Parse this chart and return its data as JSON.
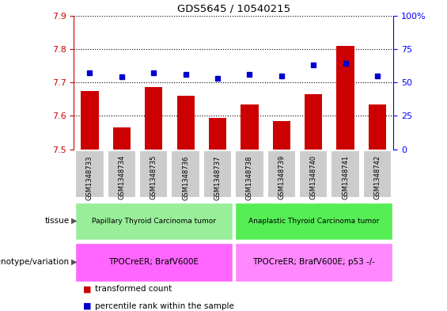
{
  "title": "GDS5645 / 10540215",
  "samples": [
    "GSM1348733",
    "GSM1348734",
    "GSM1348735",
    "GSM1348736",
    "GSM1348737",
    "GSM1348738",
    "GSM1348739",
    "GSM1348740",
    "GSM1348741",
    "GSM1348742"
  ],
  "bar_values": [
    7.675,
    7.565,
    7.685,
    7.66,
    7.595,
    7.635,
    7.585,
    7.665,
    7.81,
    7.635
  ],
  "dot_values": [
    57,
    54,
    57,
    56,
    53,
    56,
    55,
    63,
    64,
    55
  ],
  "ymin": 7.5,
  "ymax": 7.9,
  "y2min": 0,
  "y2max": 100,
  "yticks": [
    7.5,
    7.6,
    7.7,
    7.8,
    7.9
  ],
  "y2ticks": [
    0,
    25,
    50,
    75,
    100
  ],
  "y2ticklabels": [
    "0",
    "25",
    "50",
    "75",
    "100%"
  ],
  "bar_color": "#CC0000",
  "dot_color": "#0000CC",
  "bar_width": 0.55,
  "tissue_groups": [
    {
      "label": "Papillary Thyroid Carcinoma tumor",
      "start": 0,
      "end": 5,
      "color": "#99EE99"
    },
    {
      "label": "Anaplastic Thyroid Carcinoma tumor",
      "start": 5,
      "end": 10,
      "color": "#55EE55"
    }
  ],
  "genotype_groups": [
    {
      "label": "TPOCreER; BrafV600E",
      "start": 0,
      "end": 5,
      "color": "#FF66FF"
    },
    {
      "label": "TPOCreER; BrafV600E; p53 -/-",
      "start": 5,
      "end": 10,
      "color": "#FF88FF"
    }
  ],
  "tissue_label": "tissue",
  "genotype_label": "genotype/variation",
  "legend_items": [
    {
      "color": "#CC0000",
      "label": "transformed count"
    },
    {
      "color": "#0000CC",
      "label": "percentile rank within the sample"
    }
  ],
  "ylabel_color": "#CC0000",
  "y2label_color": "#0000FF",
  "grid_color": "black",
  "sample_box_color": "#CCCCCC",
  "sample_box_edge": "#AAAAAA"
}
